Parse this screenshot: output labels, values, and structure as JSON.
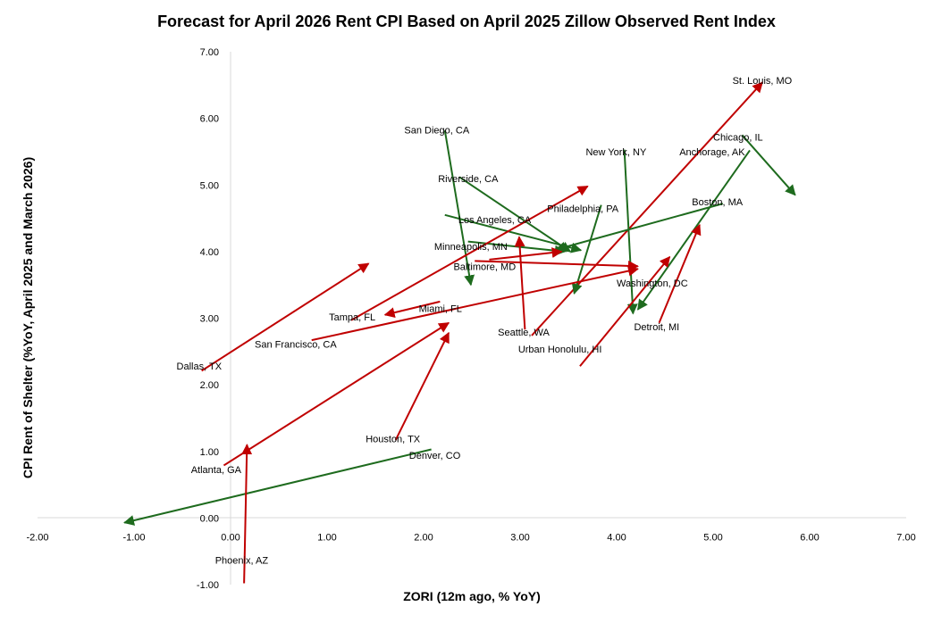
{
  "chart_data": {
    "type": "scatter",
    "title": "Forecast for April 2026 Rent CPI Based on April 2025 Zillow Observed Rent Index",
    "xlabel": "ZORI (12m ago, % YoY)",
    "ylabel": "CPI Rent of Shelter (%YoY, April 2025 and March 2026)",
    "xlim": [
      -2,
      7
    ],
    "ylim": [
      -1,
      7
    ],
    "x_ticks": [
      "-2.00",
      "-1.00",
      "0.00",
      "1.00",
      "2.00",
      "3.00",
      "4.00",
      "5.00",
      "6.00",
      "7.00"
    ],
    "y_ticks": [
      "-1.00",
      "0.00",
      "1.00",
      "2.00",
      "3.00",
      "4.00",
      "5.00",
      "6.00",
      "7.00"
    ],
    "grid": false,
    "colors": {
      "up": "#c00000",
      "down": "#1e6b1e"
    },
    "arrows": [
      {
        "city": "St. Louis, MO",
        "from": [
          3.12,
          2.74
        ],
        "to": [
          5.51,
          6.54
        ],
        "dir": "up",
        "label_at": [
          5.2,
          6.57
        ]
      },
      {
        "city": "San Diego, CA",
        "from": [
          2.22,
          5.82
        ],
        "to": [
          2.49,
          3.5
        ],
        "dir": "down",
        "label_at": [
          1.8,
          5.83
        ]
      },
      {
        "city": "Chicago, IL",
        "from": [
          5.3,
          5.75
        ],
        "to": [
          5.85,
          4.85
        ],
        "dir": "down",
        "label_at": [
          5.0,
          5.72
        ]
      },
      {
        "city": "New York, NY",
        "from": [
          4.08,
          5.53
        ],
        "to": [
          4.17,
          3.07
        ],
        "dir": "down",
        "label_at": [
          3.68,
          5.5
        ]
      },
      {
        "city": "Anchorage, AK",
        "from": [
          5.38,
          5.52
        ],
        "to": [
          4.22,
          3.13
        ],
        "dir": "down",
        "label_at": [
          4.65,
          5.5
        ]
      },
      {
        "city": "Riverside, CA",
        "from": [
          2.37,
          5.12
        ],
        "to": [
          3.52,
          4.0
        ],
        "dir": "down",
        "label_at": [
          2.15,
          5.1
        ]
      },
      {
        "city": "Boston, MA",
        "from": [
          5.1,
          4.72
        ],
        "to": [
          3.37,
          4.03
        ],
        "dir": "down",
        "label_at": [
          4.78,
          4.75
        ]
      },
      {
        "city": "Philadelphia, PA",
        "from": [
          3.84,
          4.7
        ],
        "to": [
          3.56,
          3.37
        ],
        "dir": "down",
        "label_at": [
          3.28,
          4.65
        ]
      },
      {
        "city": "Los Angeles, CA",
        "from": [
          2.22,
          4.55
        ],
        "to": [
          3.63,
          4.02
        ],
        "dir": "down",
        "label_at": [
          2.36,
          4.48
        ]
      },
      {
        "city": "Minneapolis, MN",
        "from": [
          2.46,
          4.15
        ],
        "to": [
          3.46,
          4.0
        ],
        "dir": "down",
        "label_at": [
          2.11,
          4.08
        ]
      },
      {
        "city": "Baltimore, MD",
        "from": [
          2.68,
          3.88
        ],
        "to": [
          3.43,
          4.0
        ],
        "dir": "up",
        "label_at": [
          2.31,
          3.78
        ]
      },
      {
        "city": "Washington, DC",
        "from": [
          2.53,
          3.86
        ],
        "to": [
          4.22,
          3.78
        ],
        "dir": "up",
        "label_at": [
          4.0,
          3.53
        ]
      },
      {
        "city": "Denver, CO",
        "from": [
          2.08,
          1.03
        ],
        "to": [
          -1.1,
          -0.07
        ],
        "dir": "down",
        "label_at": [
          1.85,
          0.94
        ]
      },
      {
        "city": "Detroit, MI",
        "from": [
          4.44,
          2.93
        ],
        "to": [
          4.86,
          4.4
        ],
        "dir": "up",
        "label_at": [
          4.18,
          2.87
        ]
      },
      {
        "city": "Seattle, WA",
        "from": [
          3.05,
          2.83
        ],
        "to": [
          2.99,
          4.22
        ],
        "dir": "up",
        "label_at": [
          2.77,
          2.79
        ]
      },
      {
        "city": "Urban Honolulu, HI",
        "from": [
          3.62,
          2.28
        ],
        "to": [
          4.55,
          3.92
        ],
        "dir": "up",
        "label_at": [
          2.98,
          2.54
        ]
      },
      {
        "city": "Miami, FL",
        "from": [
          2.17,
          3.25
        ],
        "to": [
          1.6,
          3.05
        ],
        "dir": "up",
        "label_at": [
          1.95,
          3.15
        ]
      },
      {
        "city": "Tampa, FL",
        "from": [
          1.25,
          2.97
        ],
        "to": [
          3.7,
          4.98
        ],
        "dir": "up",
        "label_at": [
          1.02,
          3.02
        ]
      },
      {
        "city": "San Francisco, CA",
        "from": [
          0.84,
          2.67
        ],
        "to": [
          4.22,
          3.74
        ],
        "dir": "up",
        "label_at": [
          0.25,
          2.61
        ]
      },
      {
        "city": "Dallas, TX",
        "from": [
          -0.3,
          2.21
        ],
        "to": [
          1.43,
          3.82
        ],
        "dir": "up",
        "label_at": [
          -0.56,
          2.28
        ]
      },
      {
        "city": "Houston, TX",
        "from": [
          1.71,
          1.17
        ],
        "to": [
          2.26,
          2.78
        ],
        "dir": "up",
        "label_at": [
          1.4,
          1.19
        ]
      },
      {
        "city": "Atlanta, GA",
        "from": [
          -0.07,
          0.79
        ],
        "to": [
          2.26,
          2.93
        ],
        "dir": "up",
        "label_at": [
          -0.41,
          0.73
        ]
      },
      {
        "city": "Phoenix, AZ",
        "from": [
          0.14,
          -0.98
        ],
        "to": [
          0.17,
          1.1
        ],
        "dir": "up",
        "label_at": [
          -0.16,
          -0.63
        ]
      }
    ]
  }
}
